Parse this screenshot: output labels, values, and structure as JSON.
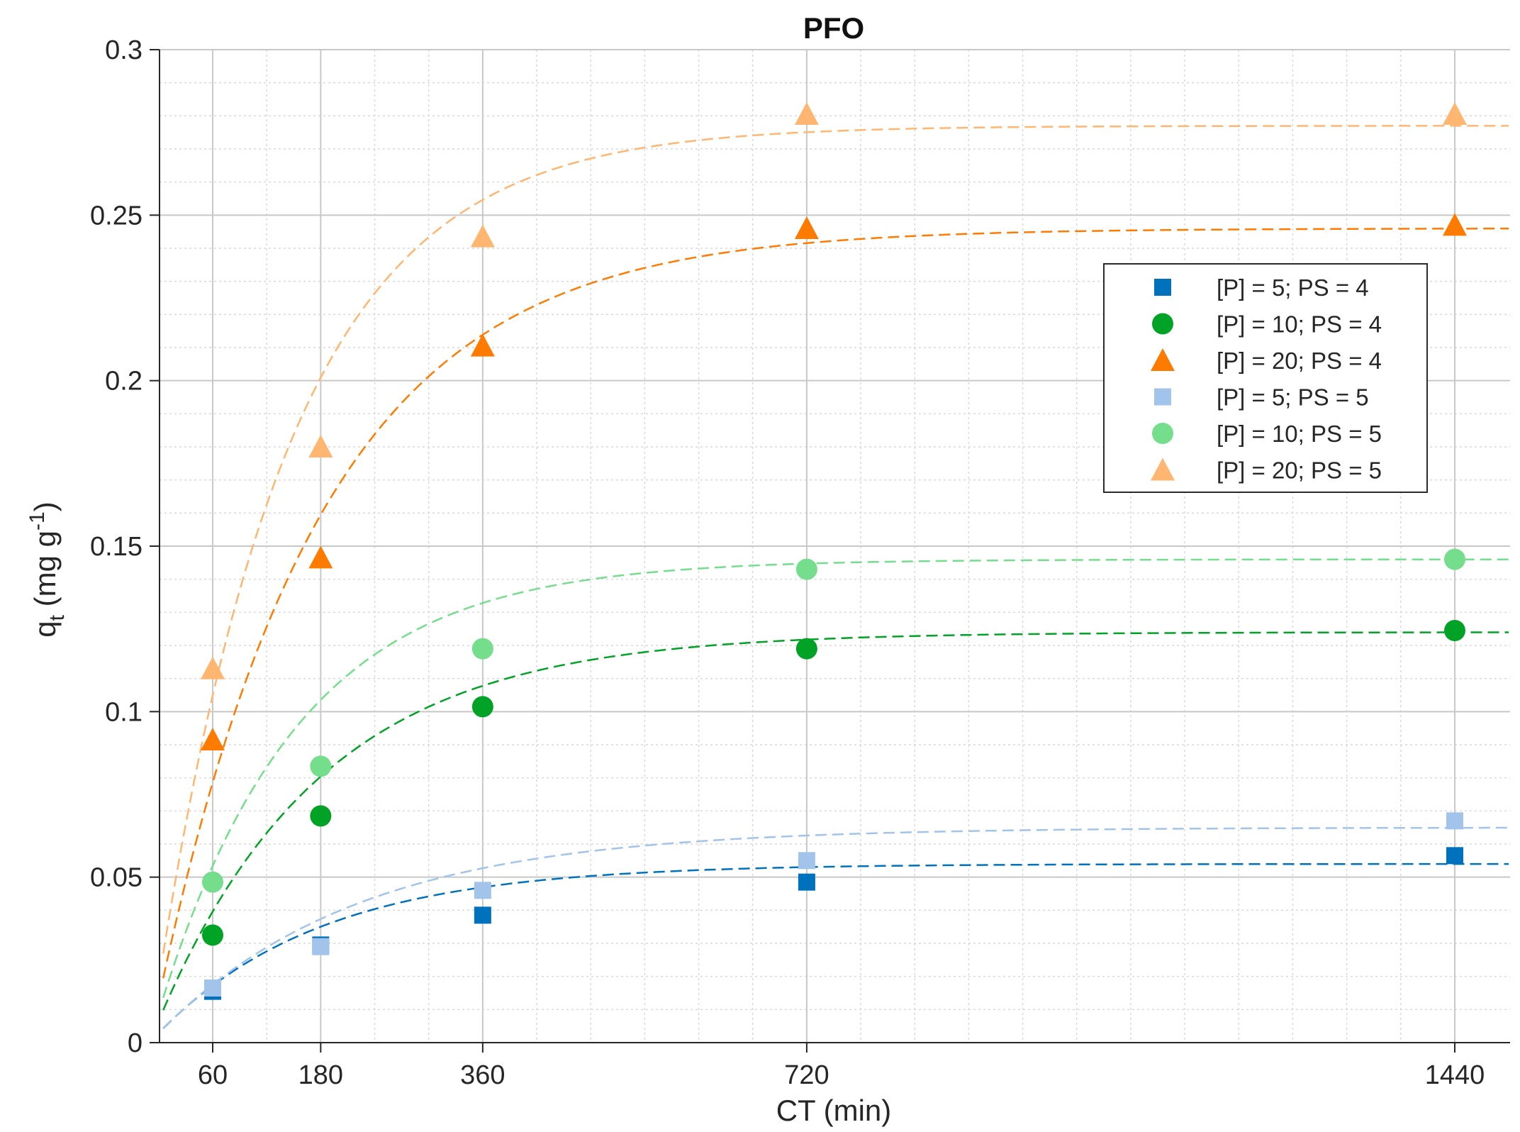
{
  "chart_data": {
    "type": "scatter",
    "title": "PFO",
    "xlabel": "CT (min)",
    "ylabel": {
      "main": "q",
      "sub": "t",
      "unit_open": " (mg g",
      "sup": "-1",
      "unit_close": ")"
    },
    "xlim": [
      0,
      1440
    ],
    "ylim": [
      0,
      0.3
    ],
    "x_ticks": [
      60,
      180,
      360,
      720,
      1440
    ],
    "y_ticks": [
      0,
      0.05,
      0.1,
      0.15,
      0.2,
      0.25,
      0.3
    ],
    "y_tick_labels": [
      "0",
      "0.05",
      "0.1",
      "0.15",
      "0.2",
      "0.25",
      "0.3"
    ],
    "grid": true,
    "minor_grid": true,
    "legend_position": "upper-right",
    "x": [
      60,
      180,
      360,
      720,
      1440
    ],
    "series": [
      {
        "name": "[P] = 5; PS = 4",
        "marker": "square",
        "color": "#0072bd",
        "values": [
          0.0155,
          0.0295,
          0.0385,
          0.0485,
          0.0565
        ],
        "fit": {
          "qe": 0.054,
          "k": 0.0055
        }
      },
      {
        "name": "[P] = 10; PS = 4",
        "marker": "circle",
        "color": "#00a325",
        "values": [
          0.0325,
          0.0685,
          0.1015,
          0.119,
          0.1245
        ],
        "fit": {
          "qe": 0.124,
          "k": 0.0055
        }
      },
      {
        "name": "[P] = 20; PS = 4",
        "marker": "triangle",
        "color": "#ff7b00",
        "values": [
          0.0915,
          0.1465,
          0.2105,
          0.246,
          0.247
        ],
        "fit": {
          "qe": 0.246,
          "k": 0.0055
        }
      },
      {
        "name": "[P] = 5; PS = 5",
        "marker": "square",
        "color": "#a2c4ea",
        "values": [
          0.0165,
          0.029,
          0.046,
          0.055,
          0.067
        ],
        "fit": {
          "qe": 0.065,
          "k": 0.0045
        }
      },
      {
        "name": "[P] = 10; PS = 5",
        "marker": "circle",
        "color": "#74de8c",
        "values": [
          0.0485,
          0.0835,
          0.119,
          0.143,
          0.146
        ],
        "fit": {
          "qe": 0.146,
          "k": 0.0065
        }
      },
      {
        "name": "[P] = 20; PS = 5",
        "marker": "triangle",
        "color": "#ffb670",
        "values": [
          0.113,
          0.18,
          0.2435,
          0.2805,
          0.2805
        ],
        "fit": {
          "qe": 0.277,
          "k": 0.0068
        }
      }
    ]
  }
}
